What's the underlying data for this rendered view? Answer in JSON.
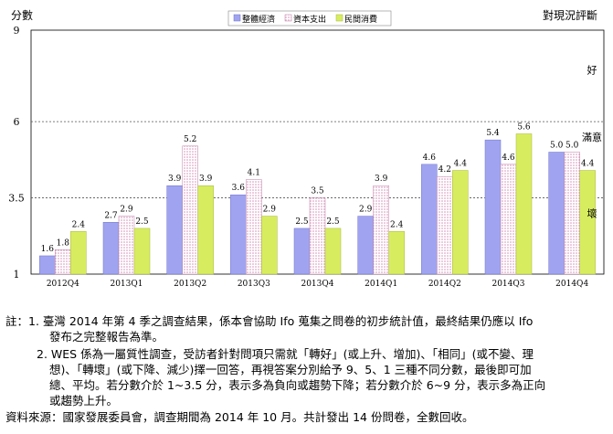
{
  "chart_data": {
    "type": "bar",
    "ylabel": "分數",
    "right_title": "對現況評斷",
    "right_labels": [
      "好",
      "滿意",
      "壞"
    ],
    "y_ticks": [
      1,
      3.5,
      6,
      9
    ],
    "ylim": [
      1,
      9
    ],
    "reference_lines": [
      3.5,
      6
    ],
    "legend_position": "top-center",
    "categories": [
      "2012Q4",
      "2013Q1",
      "2013Q2",
      "2013Q3",
      "2013Q4",
      "2014Q1",
      "2014Q2",
      "2014Q3",
      "2014Q4"
    ],
    "series": [
      {
        "name": "整體經濟",
        "values": [
          1.6,
          2.7,
          3.9,
          3.6,
          2.5,
          2.9,
          4.6,
          5.4,
          5.0
        ]
      },
      {
        "name": "資本支出",
        "values": [
          1.8,
          2.9,
          5.2,
          4.1,
          3.5,
          3.9,
          4.2,
          4.6,
          5.0
        ]
      },
      {
        "name": "民間消費",
        "values": [
          2.4,
          2.5,
          3.9,
          2.9,
          2.5,
          2.4,
          4.4,
          5.6,
          4.4
        ]
      }
    ],
    "colors": {
      "series1": "#a0a4f0",
      "series2_dots": "#e0a8c8",
      "series3": "#d8ec60"
    }
  },
  "notes": {
    "n1_line1": "註：1.  臺灣 2014 年第 4 季之調查結果，係本會協助 Ifo 蒐集之問卷的初步統計值，最終結果仍應以 Ifo",
    "n1_line2": "發布之完整報告為準。",
    "n2_line1": "2. WES 係為一屬質性調查，受訪者針對問項只需就「轉好」(或上升、增加)、「相同」(或不變、理",
    "n2_line2": "想)、「轉壞」(或下降、減少)擇一回答，再視答案分別給予 9、5、1 三種不同分數，最後即可加",
    "n2_line3": "總、平均。若分數介於 1~3.5 分，表示多為負向或趨勢下降；若分數介於 6~9 分，表示多為正向",
    "n2_line4": "或趨勢上升。",
    "source": "資料來源：國家發展委員會，調查期間為 2014 年 10 月。共計發出 14 份問卷，全數回收。"
  }
}
